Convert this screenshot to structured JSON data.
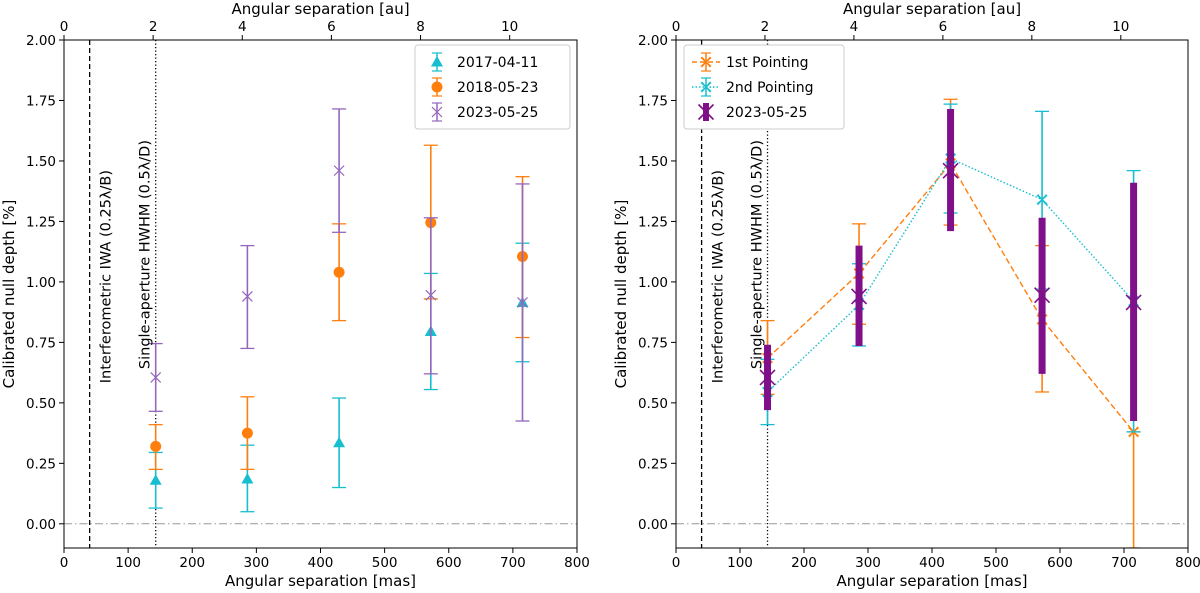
{
  "colors": {
    "cyan": "#17becf",
    "orange": "#ff7f0e",
    "purple_light": "#9467bd",
    "purple_dark": "#7f1089",
    "baseline": "#999999"
  },
  "chart_data": [
    {
      "type": "scatter",
      "id": "left",
      "title": "",
      "xlabel": "Angular separation [mas]",
      "ylabel": "Calibrated null depth [%]",
      "x2label": "Angular separation [au]",
      "xlim": [
        0,
        800
      ],
      "ylim": [
        -0.1,
        2.0
      ],
      "xticks": [
        0,
        100,
        200,
        300,
        400,
        500,
        600,
        700,
        800
      ],
      "yticks": [
        "0.00",
        "0.25",
        "0.50",
        "0.75",
        "1.00",
        "1.25",
        "1.50",
        "1.75",
        "2.00"
      ],
      "x2ticks": [
        {
          "label": "0",
          "mas": 0
        },
        {
          "label": "2",
          "mas": 139
        },
        {
          "label": "4",
          "mas": 278
        },
        {
          "label": "6",
          "mas": 417
        },
        {
          "label": "8",
          "mas": 556
        },
        {
          "label": "10",
          "mas": 695
        }
      ],
      "vlines": [
        {
          "x": 40,
          "style": "dashed",
          "label": "Interferometric IWA (0.25λ/B)"
        },
        {
          "x": 143,
          "style": "dotted",
          "label": "Single-aperture HWHM (0.5λ/D)"
        }
      ],
      "hline": 0,
      "legend_position": "top-right",
      "series": [
        {
          "name": "2017-04-11",
          "color_key": "cyan",
          "marker": "triangle",
          "line": "none",
          "x": [
            143,
            286,
            429,
            572,
            715
          ],
          "y": [
            0.18,
            0.185,
            0.335,
            0.795,
            0.915
          ],
          "ylo": [
            0.065,
            0.05,
            0.15,
            0.555,
            0.67
          ],
          "yhi": [
            0.295,
            0.325,
            0.52,
            1.035,
            1.16
          ]
        },
        {
          "name": "2018-05-23",
          "color_key": "orange",
          "marker": "circle",
          "line": "none",
          "x": [
            143,
            286,
            429,
            572,
            715
          ],
          "y": [
            0.32,
            0.375,
            1.04,
            1.245,
            1.105
          ],
          "ylo": [
            0.225,
            0.225,
            0.84,
            0.93,
            0.77
          ],
          "yhi": [
            0.41,
            0.525,
            1.24,
            1.565,
            1.435
          ]
        },
        {
          "name": "2023-05-25",
          "color_key": "purple_light",
          "marker": "x",
          "line": "none",
          "x": [
            143,
            286,
            429,
            572,
            715
          ],
          "y": [
            0.605,
            0.94,
            1.46,
            0.945,
            0.915
          ],
          "ylo": [
            0.465,
            0.725,
            1.205,
            0.62,
            0.425
          ],
          "yhi": [
            0.745,
            1.15,
            1.715,
            1.265,
            1.405
          ]
        }
      ]
    },
    {
      "type": "line",
      "id": "right",
      "title": "",
      "xlabel": "Angular separation [mas]",
      "ylabel": "Calibrated null depth [%]",
      "x2label": "Angular separation [au]",
      "xlim": [
        0,
        800
      ],
      "ylim": [
        -0.1,
        2.0
      ],
      "xticks": [
        0,
        100,
        200,
        300,
        400,
        500,
        600,
        700,
        800
      ],
      "yticks": [
        "0.00",
        "0.25",
        "0.50",
        "0.75",
        "1.00",
        "1.25",
        "1.50",
        "1.75",
        "2.00"
      ],
      "x2ticks": [
        {
          "label": "0",
          "mas": 0
        },
        {
          "label": "2",
          "mas": 139
        },
        {
          "label": "4",
          "mas": 278
        },
        {
          "label": "6",
          "mas": 417
        },
        {
          "label": "8",
          "mas": 556
        },
        {
          "label": "10",
          "mas": 695
        }
      ],
      "vlines": [
        {
          "x": 40,
          "style": "dashed",
          "label": "Interferometric IWA (0.25λ/B)"
        },
        {
          "x": 143,
          "style": "dotted",
          "label": "Single-aperture HWHM (0.5λ/D)"
        }
      ],
      "hline": 0,
      "legend_position": "top-left",
      "series": [
        {
          "name": "1st Pointing",
          "color_key": "orange",
          "marker": "x-filled",
          "line": "dashed",
          "bar": "thin",
          "x": [
            143,
            286,
            429,
            572,
            715
          ],
          "y": [
            0.685,
            1.035,
            1.49,
            0.845,
            0.38
          ],
          "ylo": [
            0.535,
            0.825,
            1.235,
            0.545,
            -0.1
          ],
          "yhi": [
            0.84,
            1.24,
            1.755,
            1.15,
            0.38
          ]
        },
        {
          "name": "2nd Pointing",
          "color_key": "cyan",
          "marker": "x-filled",
          "line": "dotted",
          "bar": "thin",
          "x": [
            143,
            286,
            429,
            572,
            715
          ],
          "y": [
            0.545,
            0.905,
            1.51,
            1.34,
            0.92
          ],
          "ylo": [
            0.41,
            0.735,
            1.285,
            0.97,
            0.38
          ],
          "yhi": [
            0.68,
            1.075,
            1.735,
            1.705,
            1.46
          ]
        },
        {
          "name": "2023-05-25",
          "color_key": "purple_dark",
          "marker": "x",
          "line": "none",
          "bar": "thick",
          "x": [
            143,
            286,
            429,
            572,
            715
          ],
          "y": [
            0.605,
            0.94,
            1.46,
            0.945,
            0.915
          ],
          "ylo": [
            0.47,
            0.735,
            1.21,
            0.62,
            0.425
          ],
          "yhi": [
            0.74,
            1.15,
            1.715,
            1.265,
            1.41
          ]
        }
      ]
    }
  ]
}
